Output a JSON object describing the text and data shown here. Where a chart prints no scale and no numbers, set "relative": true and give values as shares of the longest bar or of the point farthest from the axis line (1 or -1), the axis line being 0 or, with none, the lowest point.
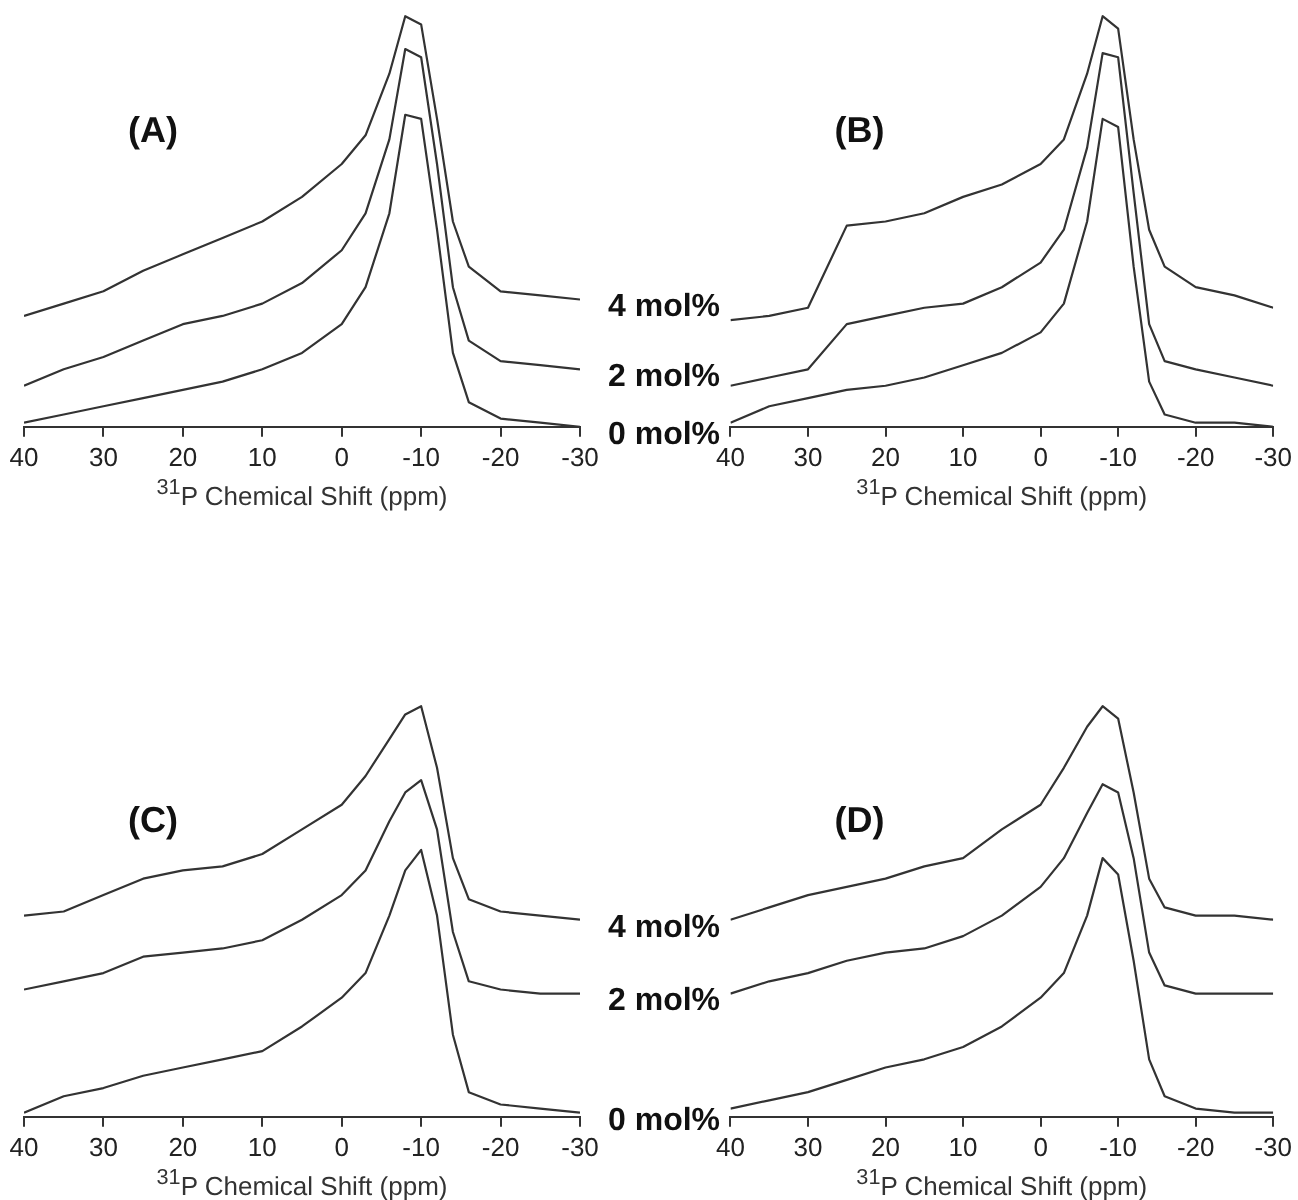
{
  "chart_data": [
    {
      "type": "line",
      "title": "(A)",
      "xlabel": "$^{31}$P Chemical Shift (ppm)",
      "relative": true,
      "xlim": [
        40,
        -30
      ],
      "xticks": [
        40,
        30,
        20,
        10,
        0,
        -10,
        -20,
        -30
      ],
      "marker": "none",
      "line_style": "solid",
      "legend": false,
      "x": [
        40,
        35,
        30,
        25,
        20,
        15,
        10,
        5,
        0,
        -3,
        -6,
        -8,
        -10,
        -12,
        -14,
        -16,
        -20,
        -25,
        -30
      ],
      "series": [
        {
          "name": "4 mol%",
          "color": "#333333",
          "values": [
            0.27,
            0.3,
            0.33,
            0.38,
            0.42,
            0.46,
            0.5,
            0.56,
            0.64,
            0.71,
            0.86,
            1.0,
            0.98,
            0.75,
            0.5,
            0.39,
            0.33,
            0.32,
            0.31
          ]
        },
        {
          "name": "2 mol%",
          "color": "#333333",
          "values": [
            0.1,
            0.14,
            0.17,
            0.21,
            0.25,
            0.27,
            0.3,
            0.35,
            0.43,
            0.52,
            0.7,
            0.92,
            0.9,
            0.64,
            0.34,
            0.21,
            0.16,
            0.15,
            0.14
          ]
        },
        {
          "name": "0 mol%",
          "color": "#333333",
          "values": [
            0.01,
            0.03,
            0.05,
            0.07,
            0.09,
            0.11,
            0.14,
            0.18,
            0.25,
            0.34,
            0.52,
            0.76,
            0.75,
            0.48,
            0.18,
            0.06,
            0.02,
            0.01,
            0.0
          ]
        }
      ]
    },
    {
      "type": "line",
      "title": "(B)",
      "xlabel": "$^{31}$P Chemical Shift (ppm)",
      "relative": true,
      "xlim": [
        40,
        -30
      ],
      "xticks": [
        40,
        30,
        20,
        10,
        0,
        -10,
        -20,
        -30
      ],
      "marker": "none",
      "line_style": "solid",
      "legend": false,
      "x": [
        40,
        35,
        30,
        25,
        20,
        15,
        10,
        5,
        0,
        -3,
        -6,
        -8,
        -10,
        -12,
        -14,
        -16,
        -20,
        -25,
        -30
      ],
      "series": [
        {
          "color": "#333333",
          "values": [
            0.26,
            0.27,
            0.29,
            0.49,
            0.5,
            0.52,
            0.56,
            0.59,
            0.64,
            0.7,
            0.86,
            1.0,
            0.97,
            0.7,
            0.48,
            0.39,
            0.34,
            0.32,
            0.29
          ]
        },
        {
          "color": "#333333",
          "values": [
            0.1,
            0.12,
            0.14,
            0.25,
            0.27,
            0.29,
            0.3,
            0.34,
            0.4,
            0.48,
            0.68,
            0.91,
            0.9,
            0.57,
            0.25,
            0.16,
            0.14,
            0.12,
            0.1
          ]
        },
        {
          "color": "#333333",
          "values": [
            0.01,
            0.05,
            0.07,
            0.09,
            0.1,
            0.12,
            0.15,
            0.18,
            0.23,
            0.3,
            0.5,
            0.75,
            0.73,
            0.39,
            0.11,
            0.03,
            0.01,
            0.01,
            0.0
          ]
        }
      ]
    },
    {
      "type": "line",
      "title": "(C)",
      "xlabel": "$^{31}$P Chemical Shift (ppm)",
      "relative": true,
      "xlim": [
        40,
        -30
      ],
      "xticks": [
        40,
        30,
        20,
        10,
        0,
        -10,
        -20,
        -30
      ],
      "marker": "none",
      "line_style": "solid",
      "legend": false,
      "x": [
        40,
        35,
        30,
        25,
        20,
        15,
        10,
        5,
        0,
        -3,
        -6,
        -8,
        -10,
        -12,
        -14,
        -16,
        -20,
        -25,
        -30
      ],
      "series": [
        {
          "name": "4 mol%",
          "color": "#333333",
          "values": [
            0.49,
            0.5,
            0.54,
            0.58,
            0.6,
            0.61,
            0.64,
            0.7,
            0.76,
            0.83,
            0.92,
            0.98,
            1.0,
            0.85,
            0.63,
            0.53,
            0.5,
            0.49,
            0.48
          ]
        },
        {
          "name": "2 mol%",
          "color": "#333333",
          "values": [
            0.31,
            0.33,
            0.35,
            0.39,
            0.4,
            0.41,
            0.43,
            0.48,
            0.54,
            0.6,
            0.72,
            0.79,
            0.82,
            0.7,
            0.45,
            0.33,
            0.31,
            0.3,
            0.3
          ]
        },
        {
          "name": "0 mol%",
          "color": "#333333",
          "values": [
            0.01,
            0.05,
            0.07,
            0.1,
            0.12,
            0.14,
            0.16,
            0.22,
            0.29,
            0.35,
            0.49,
            0.6,
            0.65,
            0.49,
            0.2,
            0.06,
            0.03,
            0.02,
            0.01
          ]
        }
      ]
    },
    {
      "type": "line",
      "title": "(D)",
      "xlabel": "$^{31}$P Chemical Shift (ppm)",
      "relative": true,
      "xlim": [
        40,
        -30
      ],
      "xticks": [
        40,
        30,
        20,
        10,
        0,
        -10,
        -20,
        -30
      ],
      "marker": "none",
      "line_style": "solid",
      "legend": false,
      "x": [
        40,
        35,
        30,
        25,
        20,
        15,
        10,
        5,
        0,
        -3,
        -6,
        -8,
        -10,
        -12,
        -14,
        -16,
        -20,
        -25,
        -30
      ],
      "series": [
        {
          "color": "#333333",
          "values": [
            0.48,
            0.51,
            0.54,
            0.56,
            0.58,
            0.61,
            0.63,
            0.7,
            0.76,
            0.85,
            0.95,
            1.0,
            0.97,
            0.79,
            0.58,
            0.51,
            0.49,
            0.49,
            0.48
          ]
        },
        {
          "color": "#333333",
          "values": [
            0.3,
            0.33,
            0.35,
            0.38,
            0.4,
            0.41,
            0.44,
            0.49,
            0.56,
            0.63,
            0.74,
            0.81,
            0.79,
            0.63,
            0.4,
            0.32,
            0.3,
            0.3,
            0.3
          ]
        },
        {
          "color": "#333333",
          "values": [
            0.02,
            0.04,
            0.06,
            0.09,
            0.12,
            0.14,
            0.17,
            0.22,
            0.29,
            0.35,
            0.49,
            0.63,
            0.59,
            0.38,
            0.14,
            0.05,
            0.02,
            0.01,
            0.01
          ]
        }
      ]
    }
  ]
}
